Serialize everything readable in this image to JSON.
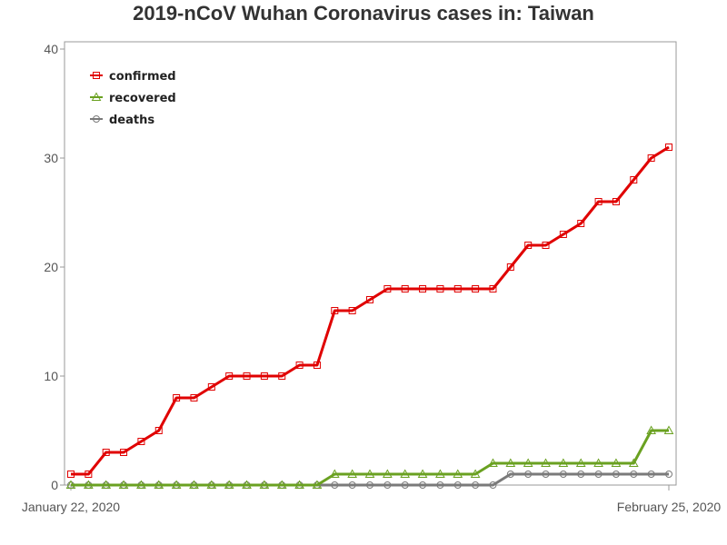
{
  "chart_data": {
    "type": "line",
    "title": "2019-nCoV Wuhan Coronavirus cases in: Taiwan",
    "xlabel": "",
    "ylabel": "",
    "x_tick_labels": [
      "January 22, 2020",
      "February 25, 2020"
    ],
    "x": [
      "2020-01-22",
      "2020-01-23",
      "2020-01-24",
      "2020-01-25",
      "2020-01-26",
      "2020-01-27",
      "2020-01-28",
      "2020-01-29",
      "2020-01-30",
      "2020-01-31",
      "2020-02-01",
      "2020-02-02",
      "2020-02-03",
      "2020-02-04",
      "2020-02-05",
      "2020-02-06",
      "2020-02-07",
      "2020-02-08",
      "2020-02-09",
      "2020-02-10",
      "2020-02-11",
      "2020-02-12",
      "2020-02-13",
      "2020-02-14",
      "2020-02-15",
      "2020-02-16",
      "2020-02-17",
      "2020-02-18",
      "2020-02-19",
      "2020-02-20",
      "2020-02-21",
      "2020-02-22",
      "2020-02-23",
      "2020-02-24",
      "2020-02-25"
    ],
    "xlim": [
      "2020-01-22",
      "2020-02-25"
    ],
    "ylim": [
      0,
      40
    ],
    "y_ticks": [
      0,
      10,
      20,
      30,
      40
    ],
    "grid": false,
    "legend_position": "top-left",
    "series": [
      {
        "name": "confirmed",
        "color": "#e00000",
        "marker": "square",
        "values": [
          1,
          1,
          3,
          3,
          4,
          5,
          8,
          8,
          9,
          10,
          10,
          10,
          10,
          11,
          11,
          16,
          16,
          17,
          18,
          18,
          18,
          18,
          18,
          18,
          18,
          20,
          22,
          22,
          23,
          24,
          26,
          26,
          28,
          30,
          31
        ]
      },
      {
        "name": "recovered",
        "color": "#6aa121",
        "marker": "triangle",
        "values": [
          0,
          0,
          0,
          0,
          0,
          0,
          0,
          0,
          0,
          0,
          0,
          0,
          0,
          0,
          0,
          1,
          1,
          1,
          1,
          1,
          1,
          1,
          1,
          1,
          2,
          2,
          2,
          2,
          2,
          2,
          2,
          2,
          2,
          5,
          5
        ]
      },
      {
        "name": "deaths",
        "color": "#7a7a7a",
        "marker": "circle",
        "values": [
          0,
          0,
          0,
          0,
          0,
          0,
          0,
          0,
          0,
          0,
          0,
          0,
          0,
          0,
          0,
          0,
          0,
          0,
          0,
          0,
          0,
          0,
          0,
          0,
          0,
          1,
          1,
          1,
          1,
          1,
          1,
          1,
          1,
          1,
          1
        ]
      }
    ]
  }
}
